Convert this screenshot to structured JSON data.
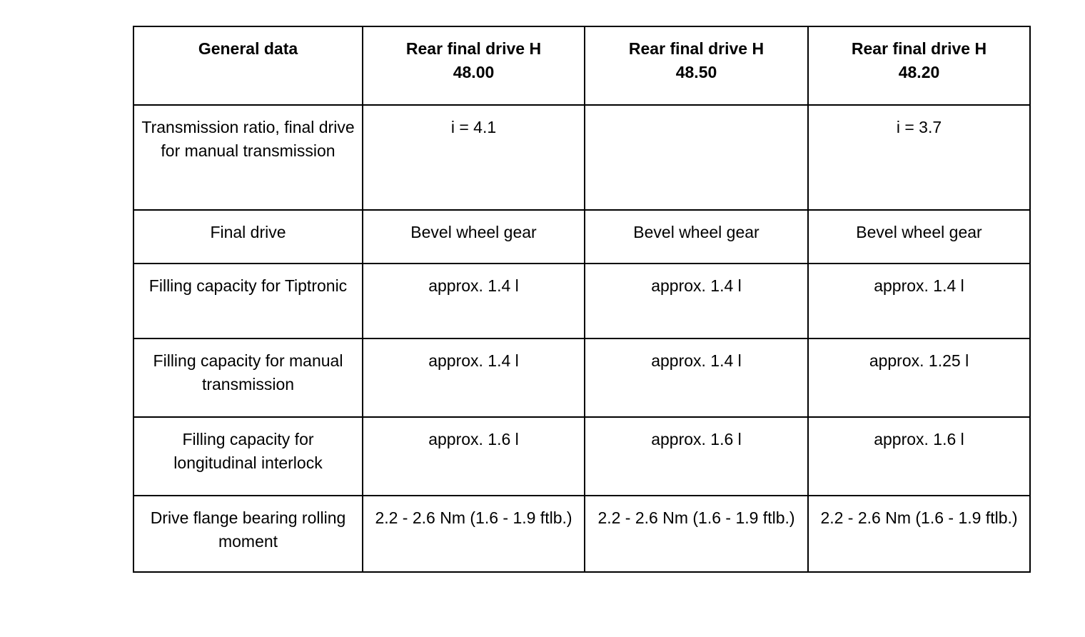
{
  "table": {
    "headers": [
      "General data",
      "Rear final drive H\n48.00",
      "Rear final drive H\n48.50",
      "Rear final drive H\n48.20"
    ],
    "rows": [
      {
        "label": "Transmission ratio, final drive for manual transmission",
        "cells": [
          "i = 4.1",
          "",
          "i = 3.7"
        ]
      },
      {
        "label": "Final drive",
        "cells": [
          "Bevel wheel gear",
          "Bevel wheel gear",
          "Bevel wheel gear"
        ]
      },
      {
        "label": "Filling capacity for Tiptronic",
        "cells": [
          "approx. 1.4 l",
          "approx. 1.4 l",
          "approx. 1.4 l"
        ]
      },
      {
        "label": "Filling capacity for manual transmission",
        "cells": [
          "approx. 1.4 l",
          "approx. 1.4 l",
          "approx. 1.25 l"
        ]
      },
      {
        "label": "Filling capacity for longitudinal interlock",
        "cells": [
          "approx. 1.6 l",
          "approx. 1.6 l",
          "approx. 1.6 l"
        ]
      },
      {
        "label": "Drive flange bearing rolling moment",
        "cells": [
          "2.2 - 2.6 Nm (1.6 - 1.9 ftlb.)",
          "2.2 - 2.6 Nm (1.6 - 1.9 ftlb.)",
          "2.2 - 2.6 Nm (1.6 - 1.9 ftlb.)"
        ]
      }
    ]
  }
}
